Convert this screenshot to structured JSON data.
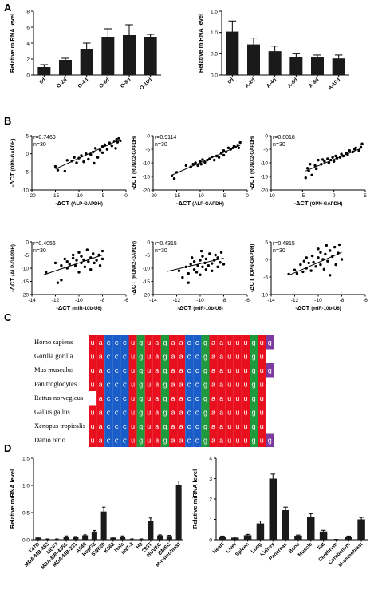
{
  "panels": {
    "A": "A",
    "B": "B",
    "C": "C",
    "D": "D"
  },
  "colors": {
    "a": "#e8101e",
    "u": "#e8101e",
    "c": "#1a5cc8",
    "g": "#1e9a3c",
    "purple": "#7b3aa0",
    "bar": "#1a1a1a"
  },
  "chart_data": [
    {
      "id": "A1",
      "type": "bar",
      "ylabel": "Relative miRNA level",
      "categories": [
        "0d",
        "O-2d",
        "O-4d",
        "O-6d",
        "O-8d",
        "O-10d"
      ],
      "values": [
        1.0,
        1.9,
        3.3,
        4.8,
        5.0,
        4.8
      ],
      "errors": [
        0.3,
        0.2,
        0.7,
        1.0,
        1.3,
        0.3
      ],
      "ylim": [
        0,
        8
      ],
      "yticks": [
        "0",
        "2",
        "4",
        "6",
        "8"
      ]
    },
    {
      "id": "A2",
      "type": "bar",
      "ylabel": "Relative miRNA level",
      "categories": [
        "0d",
        "A-2d",
        "A-4d",
        "A-6d",
        "A-8d",
        "A-10d"
      ],
      "values": [
        1.02,
        0.72,
        0.56,
        0.42,
        0.43,
        0.39
      ],
      "errors": [
        0.25,
        0.15,
        0.12,
        0.08,
        0.04,
        0.08
      ],
      "ylim": [
        0,
        1.5
      ],
      "yticks": [
        "0.0",
        "0.5",
        "1.0",
        "1.5"
      ]
    },
    {
      "id": "B1",
      "type": "scatter",
      "r": "r=0.7469",
      "n": "n=30",
      "xlabel": "-ΔCT",
      "xlabel_sub": "(ALP-GAPDH)",
      "ylabel": "-ΔCT",
      "ylabel_sub": "(OPN-GAPDH)",
      "xlim": [
        -20,
        0
      ],
      "ylim": [
        -10,
        5
      ],
      "xticks": [
        "-20",
        "-15",
        "-10",
        "-5",
        "0"
      ],
      "yticks": [
        "-10",
        "-5",
        "0",
        "5"
      ],
      "fit": [
        [
          -15,
          -4.2
        ],
        [
          -1.5,
          3.8
        ]
      ],
      "points": [
        [
          -15,
          -3.5
        ],
        [
          -14.5,
          -4.5
        ],
        [
          -13,
          -4.8
        ],
        [
          -12.5,
          -1.8
        ],
        [
          -11.5,
          -2
        ],
        [
          -11,
          -1
        ],
        [
          -10.5,
          -2.5
        ],
        [
          -10,
          -1.2
        ],
        [
          -9.5,
          -0.5
        ],
        [
          -9,
          -2.2
        ],
        [
          -8.5,
          0
        ],
        [
          -8,
          -1.5
        ],
        [
          -7.5,
          -0.2
        ],
        [
          -7,
          0.5
        ],
        [
          -6.8,
          -2.6
        ],
        [
          -6.5,
          1.5
        ],
        [
          -6,
          -1
        ],
        [
          -5.5,
          1
        ],
        [
          -5,
          2
        ],
        [
          -5,
          0.3
        ],
        [
          -4.5,
          2.5
        ],
        [
          -4,
          1.2
        ],
        [
          -3.5,
          3
        ],
        [
          -3,
          2.2
        ],
        [
          -2.5,
          3.5
        ],
        [
          -2.2,
          1.5
        ],
        [
          -2,
          4
        ],
        [
          -1.8,
          3.2
        ],
        [
          -1.5,
          4.3
        ],
        [
          -1.2,
          3.6
        ]
      ]
    },
    {
      "id": "B2",
      "type": "scatter",
      "r": "r=0.9114",
      "n": "n=30",
      "xlabel": "-ΔCT",
      "xlabel_sub": "(ALP-GAPDH)",
      "ylabel": "-ΔCT",
      "ylabel_sub": "(RUNX2-GAPDH)",
      "xlim": [
        -20,
        0
      ],
      "ylim": [
        -20,
        0
      ],
      "xticks": [
        "-20",
        "-15",
        "-10",
        "-5",
        "0"
      ],
      "yticks": [
        "-20",
        "-15",
        "-10",
        "-5",
        "0"
      ],
      "fit": [
        [
          -16,
          -14.5
        ],
        [
          -1.5,
          -3.5
        ]
      ],
      "points": [
        [
          -16,
          -14.8
        ],
        [
          -15.5,
          -15.8
        ],
        [
          -15,
          -13.5
        ],
        [
          -13,
          -11
        ],
        [
          -12,
          -11.5
        ],
        [
          -11.5,
          -10.5
        ],
        [
          -11,
          -10
        ],
        [
          -10.5,
          -11
        ],
        [
          -10,
          -9.5
        ],
        [
          -9.8,
          -10.5
        ],
        [
          -9.5,
          -8.8
        ],
        [
          -9,
          -9.8
        ],
        [
          -8.5,
          -9
        ],
        [
          -8,
          -8.5
        ],
        [
          -7.5,
          -7.8
        ],
        [
          -7,
          -9
        ],
        [
          -6.5,
          -7.5
        ],
        [
          -6,
          -8
        ],
        [
          -5.5,
          -6.5
        ],
        [
          -5,
          -7.2
        ],
        [
          -5,
          -5.5
        ],
        [
          -4.5,
          -6
        ],
        [
          -4,
          -4.5
        ],
        [
          -3.5,
          -5
        ],
        [
          -3,
          -4.5
        ],
        [
          -2.8,
          -3.8
        ],
        [
          -2.5,
          -4.2
        ],
        [
          -2,
          -3.5
        ],
        [
          -1.8,
          -4.5
        ],
        [
          -1.5,
          -2.5
        ]
      ]
    },
    {
      "id": "B3",
      "type": "scatter",
      "r": "r=0.8018",
      "n": "n=30",
      "xlabel": "-ΔCT",
      "xlabel_sub": "(OPN-GAPDH)",
      "ylabel": "-ΔCT",
      "ylabel_sub": "(RUNX2-GAPDH)",
      "xlim": [
        -10,
        5
      ],
      "ylim": [
        -20,
        0
      ],
      "xticks": [
        "-10",
        "-5",
        "0",
        "5"
      ],
      "yticks": [
        "-20",
        "-15",
        "-10",
        "-5",
        "0"
      ],
      "fit": [
        [
          -4.5,
          -13
        ],
        [
          4.5,
          -4.5
        ]
      ],
      "points": [
        [
          -4.5,
          -15.5
        ],
        [
          -4.2,
          -12
        ],
        [
          -4,
          -13
        ],
        [
          -3.8,
          -10.5
        ],
        [
          -3.5,
          -14.5
        ],
        [
          -3,
          -11
        ],
        [
          -2.8,
          -12.2
        ],
        [
          -2.5,
          -9
        ],
        [
          -2,
          -10.5
        ],
        [
          -1.8,
          -8.8
        ],
        [
          -1.5,
          -9.5
        ],
        [
          -1,
          -8.5
        ],
        [
          -0.8,
          -10
        ],
        [
          -0.5,
          -9
        ],
        [
          -0.2,
          -8
        ],
        [
          0,
          -9.5
        ],
        [
          0.3,
          -7.5
        ],
        [
          0.5,
          -8.3
        ],
        [
          1,
          -8
        ],
        [
          1.2,
          -6.8
        ],
        [
          1.5,
          -7.5
        ],
        [
          2,
          -6.5
        ],
        [
          2.2,
          -7
        ],
        [
          2.5,
          -5.5
        ],
        [
          3,
          -6
        ],
        [
          3.3,
          -5
        ],
        [
          3.5,
          -4.5
        ],
        [
          4,
          -5.5
        ],
        [
          4.3,
          -4.2
        ],
        [
          4.5,
          -3
        ]
      ]
    },
    {
      "id": "B4",
      "type": "scatter",
      "r": "r=0.4056",
      "n": "n=30",
      "xlabel": "-ΔCT",
      "xlabel_sub": "(miR-10b-U6)",
      "ylabel": "-ΔCT",
      "ylabel_sub": "(ALP-GAPDH)",
      "xlim": [
        -14,
        -6
      ],
      "ylim": [
        -20,
        0
      ],
      "xticks": [
        "-14",
        "-12",
        "-10",
        "-8",
        "-6"
      ],
      "yticks": [
        "-20",
        "-15",
        "-10",
        "-5",
        "0"
      ],
      "fit": [
        [
          -13,
          -12.5
        ],
        [
          -8,
          -5
        ]
      ],
      "points": [
        [
          -12.8,
          -11.5
        ],
        [
          -12,
          -8
        ],
        [
          -11.8,
          -15.5
        ],
        [
          -11.5,
          -9
        ],
        [
          -11.5,
          -14.5
        ],
        [
          -11.2,
          -6.5
        ],
        [
          -11,
          -10
        ],
        [
          -11,
          -7.5
        ],
        [
          -10.8,
          -8.5
        ],
        [
          -10.5,
          -5
        ],
        [
          -10.5,
          -6.2
        ],
        [
          -10.3,
          -9
        ],
        [
          -10.2,
          -7
        ],
        [
          -10,
          -4
        ],
        [
          -10,
          -11.5
        ],
        [
          -9.8,
          -8
        ],
        [
          -9.8,
          -5.5
        ],
        [
          -9.6,
          -6.8
        ],
        [
          -9.5,
          -9.5
        ],
        [
          -9.3,
          -3
        ],
        [
          -9.2,
          -7.5
        ],
        [
          -9,
          -6
        ],
        [
          -9,
          -10.5
        ],
        [
          -8.8,
          -4.5
        ],
        [
          -8.7,
          -8
        ],
        [
          -8.5,
          -7
        ],
        [
          -8.3,
          -5
        ],
        [
          -8.2,
          -9
        ],
        [
          -8,
          -3.5
        ],
        [
          -8,
          -6.5
        ]
      ]
    },
    {
      "id": "B5",
      "type": "scatter",
      "r": "r=0.4315",
      "n": "n=30",
      "xlabel": "-ΔCT",
      "xlabel_sub": "(miR-10b-U6)",
      "ylabel": "-ΔCT",
      "ylabel_sub": "(RUNX2-GAPDH)",
      "xlim": [
        -14,
        -6
      ],
      "ylim": [
        -20,
        0
      ],
      "xticks": [
        "-14",
        "-12",
        "-10",
        "-8",
        "-6"
      ],
      "yticks": [
        "-20",
        "-15",
        "-10",
        "-5",
        "0"
      ],
      "fit": [
        [
          -12.8,
          -11.2
        ],
        [
          -8,
          -6.2
        ]
      ],
      "points": [
        [
          -11.8,
          -11
        ],
        [
          -11.5,
          -13.5
        ],
        [
          -11.2,
          -9.5
        ],
        [
          -11,
          -12
        ],
        [
          -11,
          -15.5
        ],
        [
          -10.8,
          -8.5
        ],
        [
          -10.5,
          -10.5
        ],
        [
          -10.5,
          -7.5
        ],
        [
          -10.3,
          -11.5
        ],
        [
          -10.2,
          -9
        ],
        [
          -10,
          -12.5
        ],
        [
          -10,
          -7
        ],
        [
          -9.8,
          -9.5
        ],
        [
          -9.8,
          -5.5
        ],
        [
          -9.6,
          -8
        ],
        [
          -9.5,
          -10.5
        ],
        [
          -9.5,
          -6.5
        ],
        [
          -9.3,
          -9
        ],
        [
          -9.2,
          -4.5
        ],
        [
          -9,
          -8.2
        ],
        [
          -9,
          -11
        ],
        [
          -8.8,
          -7
        ],
        [
          -8.7,
          -5
        ],
        [
          -8.5,
          -9.5
        ],
        [
          -8.5,
          -6
        ],
        [
          -8.3,
          -7.8
        ],
        [
          -8.2,
          -4
        ],
        [
          -8,
          -8.5
        ],
        [
          -10.7,
          -6
        ],
        [
          -9.9,
          -3.5
        ]
      ]
    },
    {
      "id": "B6",
      "type": "scatter",
      "r": "r=0.4815",
      "n": "n=30",
      "xlabel": "-ΔCT",
      "xlabel_sub": "(miR-10b-U6)",
      "ylabel": "-ΔCT",
      "ylabel_sub": "(OPN-GAPDH)",
      "xlim": [
        -14,
        -6
      ],
      "ylim": [
        -10,
        5
      ],
      "xticks": [
        "-14",
        "-12",
        "-10",
        "-8",
        "-6"
      ],
      "yticks": [
        "-10",
        "-5",
        "0",
        "5"
      ],
      "fit": [
        [
          -12.5,
          -4.5
        ],
        [
          -8,
          2
        ]
      ],
      "points": [
        [
          -12.5,
          -4.2
        ],
        [
          -12,
          -3
        ],
        [
          -11.8,
          -4
        ],
        [
          -11.5,
          -1.5
        ],
        [
          -11.3,
          -3.5
        ],
        [
          -11.2,
          -0.5
        ],
        [
          -11,
          -2.5
        ],
        [
          -11,
          0.5
        ],
        [
          -10.8,
          -1
        ],
        [
          -10.6,
          -3.2
        ],
        [
          -10.5,
          1
        ],
        [
          -10.4,
          -0.8
        ],
        [
          -10.2,
          -2
        ],
        [
          -10,
          0.5
        ],
        [
          -10,
          3
        ],
        [
          -9.8,
          -1.5
        ],
        [
          -9.8,
          2
        ],
        [
          -9.6,
          0
        ],
        [
          -9.5,
          -2.8
        ],
        [
          -9.4,
          1.5
        ],
        [
          -9.3,
          4
        ],
        [
          -9.2,
          -0.5
        ],
        [
          -9,
          2.5
        ],
        [
          -9,
          -4.5
        ],
        [
          -8.8,
          0.8
        ],
        [
          -8.6,
          3.5
        ],
        [
          -8.5,
          -1.5
        ],
        [
          -8.3,
          1.8
        ],
        [
          -8.2,
          4.2
        ],
        [
          -8,
          0
        ]
      ]
    },
    {
      "id": "D1",
      "type": "bar",
      "ylabel": "Relative miRNA level",
      "categories": [
        "T47D",
        "MDA-MB-453",
        "MCF7",
        "MDA-MB-435S",
        "MDA-MB-231",
        "A549",
        "HepG2",
        "SW620",
        "K562",
        "Hela",
        "hNT-2",
        "H9",
        "293T",
        "HUVEC",
        "BMSC",
        "M-osteoblast"
      ],
      "values": [
        0.04,
        0.01,
        0.01,
        0.06,
        0.05,
        0.08,
        0.15,
        0.52,
        0.04,
        0.06,
        0.01,
        0.01,
        0.35,
        0.08,
        0.07,
        1.0
      ],
      "errors": [
        0.01,
        0.005,
        0.005,
        0.01,
        0.01,
        0.01,
        0.02,
        0.08,
        0.01,
        0.01,
        0.005,
        0.005,
        0.05,
        0.01,
        0.01,
        0.08
      ],
      "ylim": [
        0,
        1.5
      ],
      "yticks": [
        "0.0",
        "0.5",
        "1.0",
        "1.5"
      ]
    },
    {
      "id": "D2",
      "type": "bar",
      "ylabel": "Relative miRNA level",
      "categories": [
        "Heart",
        "Liver",
        "Spleen",
        "Lung",
        "Kidney",
        "Pancreas",
        "Bone",
        "Muscle",
        "Fat",
        "Cerebrum",
        "Cerebellum",
        "M-osteoblast"
      ],
      "values": [
        0.15,
        0.1,
        0.22,
        0.8,
        3.0,
        1.45,
        0.2,
        1.1,
        0.4,
        0.01,
        0.15,
        1.0
      ],
      "errors": [
        0.03,
        0.03,
        0.04,
        0.12,
        0.22,
        0.15,
        0.03,
        0.18,
        0.06,
        0.005,
        0.03,
        0.1
      ],
      "ylim": [
        0,
        4
      ],
      "yticks": [
        "0",
        "1",
        "2",
        "3",
        "4"
      ]
    }
  ],
  "alignment": {
    "species": [
      "Homo sapiens",
      "Gorilla gorilla",
      "Mus musculus",
      "Pan troglodytes",
      "Rattus norvegicus",
      "Gallus gallus",
      "Xenopus tropicalis",
      "Danio rerio"
    ],
    "sequences": [
      "uacccuguagaaccgaauuugug",
      "uacccuguagaaccgaauuugu",
      "uacccuguagaaccgaauuugug",
      "uacccuguagaaccgaauuugu",
      "acccuguagaaccgaauuugu",
      "uacccuguagaaccgaauuugu",
      "uacccuguagaaccgaauuugu",
      "uacccuguagaaccgaauuugug"
    ]
  }
}
